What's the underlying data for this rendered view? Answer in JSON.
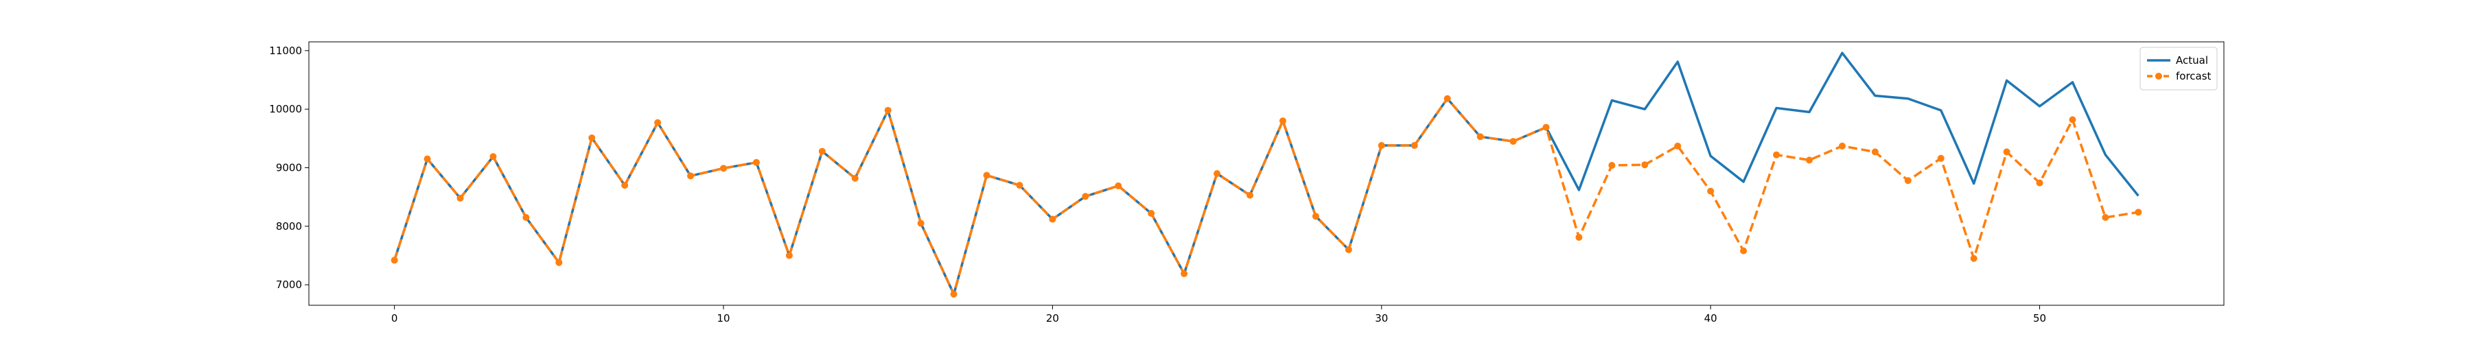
{
  "chart_data": {
    "type": "line",
    "title": "",
    "xlabel": "",
    "ylabel": "",
    "xlim": [
      -2.6,
      55.6
    ],
    "ylim": [
      6650,
      11150
    ],
    "xticks": [
      0,
      10,
      20,
      30,
      40,
      50
    ],
    "yticks": [
      7000,
      8000,
      9000,
      10000,
      11000
    ],
    "grid": false,
    "legend_position": "upper right",
    "series": [
      {
        "name": "Actual",
        "color": "#1f77b4",
        "style": "solid",
        "marker": "none",
        "x": [
          0,
          1,
          2,
          3,
          4,
          5,
          6,
          7,
          8,
          9,
          10,
          11,
          12,
          13,
          14,
          15,
          16,
          17,
          18,
          19,
          20,
          21,
          22,
          23,
          24,
          25,
          26,
          27,
          28,
          29,
          30,
          31,
          32,
          33,
          34,
          35,
          36,
          37,
          38,
          39,
          40,
          41,
          42,
          43,
          44,
          45,
          46,
          47,
          48,
          49,
          50,
          51,
          52,
          53
        ],
        "values": [
          7420,
          9150,
          8480,
          9190,
          8150,
          7380,
          9510,
          8700,
          9770,
          8860,
          8990,
          9090,
          7500,
          9280,
          8820,
          9980,
          8050,
          6840,
          8870,
          8700,
          8120,
          8510,
          8690,
          8220,
          7190,
          8900,
          8530,
          9800,
          8170,
          7600,
          9380,
          9380,
          10180,
          9530,
          9450,
          9690,
          8620,
          10150,
          10000,
          10810,
          9200,
          8760,
          10020,
          9950,
          10960,
          10230,
          10180,
          9980,
          8730,
          10490,
          10050,
          10460,
          9220,
          8520
        ]
      },
      {
        "name": "forcast",
        "color": "#ff7f0e",
        "style": "dashed",
        "marker": "circle",
        "x": [
          0,
          1,
          2,
          3,
          4,
          5,
          6,
          7,
          8,
          9,
          10,
          11,
          12,
          13,
          14,
          15,
          16,
          17,
          18,
          19,
          20,
          21,
          22,
          23,
          24,
          25,
          26,
          27,
          28,
          29,
          30,
          31,
          32,
          33,
          34,
          35,
          36,
          37,
          38,
          39,
          40,
          41,
          42,
          43,
          44,
          45,
          46,
          47,
          48,
          49,
          50,
          51,
          52,
          53
        ],
        "values": [
          7420,
          9150,
          8480,
          9190,
          8150,
          7380,
          9510,
          8700,
          9770,
          8860,
          8990,
          9090,
          7500,
          9280,
          8820,
          9980,
          8050,
          6840,
          8870,
          8700,
          8120,
          8510,
          8690,
          8220,
          7190,
          8900,
          8530,
          9800,
          8170,
          7600,
          9380,
          9380,
          10180,
          9530,
          9450,
          9690,
          7810,
          9040,
          9050,
          9370,
          8600,
          7580,
          9220,
          9130,
          9370,
          9270,
          8780,
          9160,
          7450,
          9270,
          8740,
          9820,
          8150,
          8240
        ]
      }
    ]
  }
}
